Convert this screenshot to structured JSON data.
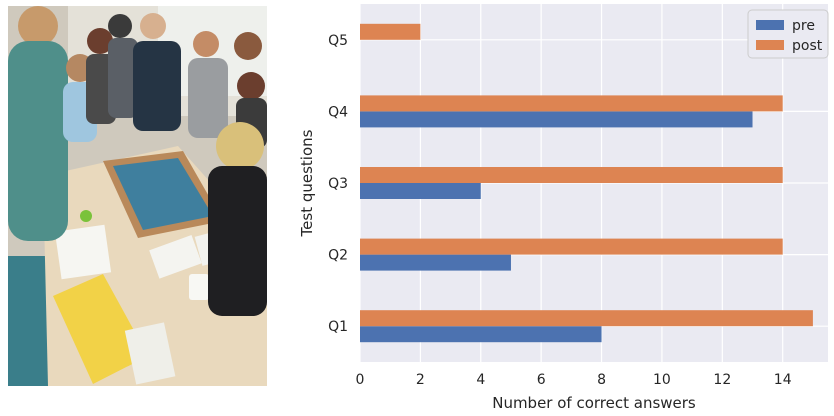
{
  "chart_data": {
    "type": "bar",
    "orientation": "horizontal",
    "categories": [
      "Q1",
      "Q2",
      "Q3",
      "Q4",
      "Q5"
    ],
    "series": [
      {
        "name": "pre",
        "color": "#4c72b0",
        "values": [
          8,
          5,
          4,
          13,
          0
        ]
      },
      {
        "name": "post",
        "color": "#dd8452",
        "values": [
          15,
          14,
          14,
          14,
          2
        ]
      }
    ],
    "xlabel": "Number of correct answers",
    "ylabel": "Test questions",
    "xlim": [
      0,
      15.5
    ],
    "xticks": [
      0,
      2,
      4,
      6,
      8,
      10,
      12,
      14
    ],
    "grid": true,
    "legend_position": "top-right",
    "background": "#eaeaf2"
  }
}
